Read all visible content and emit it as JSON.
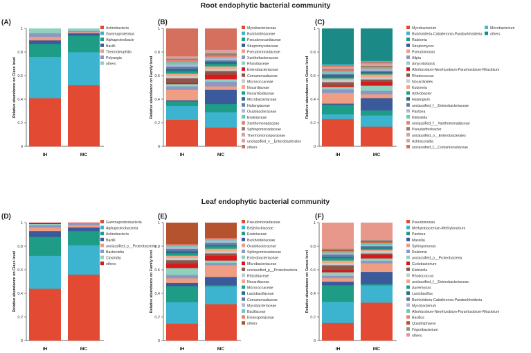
{
  "figure": {
    "section_titles": [
      "Root endophytic bacterial community",
      "Leaf endophytic bacterial community"
    ]
  },
  "chart_data": [
    {
      "panel": "(A)",
      "type": "bar",
      "stacked": true,
      "ylabel": "Relative abundance on Class level",
      "ylim": [
        0,
        1
      ],
      "yticks": [
        "0",
        "0.2",
        "0.4",
        "0.6",
        "0.8",
        "1"
      ],
      "categories": [
        "IH",
        "MC"
      ],
      "series": [
        {
          "name": "Actinobacteria",
          "color": "#E24A33",
          "values": [
            0.41,
            0.52
          ]
        },
        {
          "name": "Gammaproteobac",
          "color": "#3CB4CF",
          "values": [
            0.35,
            0.28
          ]
        },
        {
          "name": "Alphaproteobacte",
          "color": "#1E9C86",
          "values": [
            0.11,
            0.14
          ]
        },
        {
          "name": "Bacilli",
          "color": "#3A5A9B",
          "values": [
            0.03,
            0.02
          ]
        },
        {
          "name": "Thermoleophilia",
          "color": "#EF9D83",
          "values": [
            0.03,
            0.01
          ]
        },
        {
          "name": "Polyangia",
          "color": "#8C97C3",
          "values": [
            0.03,
            0.01
          ]
        },
        {
          "name": "others",
          "color": "#8FD1BF",
          "values": [
            0.04,
            0.02
          ]
        }
      ]
    },
    {
      "panel": "(B)",
      "type": "bar",
      "stacked": true,
      "ylabel": "Relative abundance on Family level",
      "ylim": [
        0,
        1
      ],
      "yticks": [
        "0",
        "0.2",
        "0.4",
        "0.6",
        "0.8",
        "1"
      ],
      "categories": [
        "IH",
        "MC"
      ],
      "series": [
        {
          "name": "Mycobacteriaceae",
          "color": "#E24A33",
          "values": [
            0.23,
            0.16
          ]
        },
        {
          "name": "Burkholderiaceae",
          "color": "#3CB4CF",
          "values": [
            0.12,
            0.13
          ]
        },
        {
          "name": "Pseudonocardiaceae",
          "color": "#1E9C86",
          "values": [
            0.04,
            0.07
          ]
        },
        {
          "name": "Streptomycetaceae",
          "color": "#3A5A9B",
          "values": [
            0.01,
            0.12
          ]
        },
        {
          "name": "Pseudomonadaceae",
          "color": "#EF9D83",
          "values": [
            0.09,
            0.03
          ]
        },
        {
          "name": "Xanthobacteraceae",
          "color": "#8C97C3",
          "values": [
            0.03,
            0.04
          ]
        },
        {
          "name": "Rhizobiaceae",
          "color": "#8FD1BF",
          "values": [
            0.02,
            0.02
          ]
        },
        {
          "name": "Enterobacteriaceae",
          "color": "#D7191C",
          "values": [
            0.01,
            0.04
          ]
        },
        {
          "name": "Comamonadaceae",
          "color": "#8C564B",
          "values": [
            0.04,
            0.03
          ]
        },
        {
          "name": "Micrococcaceae",
          "color": "#C9C9C9",
          "values": [
            0.02,
            0.02
          ]
        },
        {
          "name": "Nocardiaceae",
          "color": "#F4A582",
          "values": [
            0.02,
            0.02
          ]
        },
        {
          "name": "Nocardioidaceae",
          "color": "#17A589",
          "values": [
            0.02,
            0.02
          ]
        },
        {
          "name": "Microbacteriaceae",
          "color": "#2E6B8A",
          "values": [
            0.02,
            0.02
          ]
        },
        {
          "name": "Haliangiaceae",
          "color": "#5E7FA8",
          "values": [
            0.02,
            0.01
          ]
        },
        {
          "name": "Oxalobacteraceae",
          "color": "#B0B7D6",
          "values": [
            0.02,
            0.02
          ]
        },
        {
          "name": "Erwiniaceae",
          "color": "#6FC7B8",
          "values": [
            0.02,
            0.01
          ]
        },
        {
          "name": "Xanthomonadaceae",
          "color": "#E8816F",
          "values": [
            0.02,
            0.01
          ]
        },
        {
          "name": "Sphingomonadaceae",
          "color": "#9B7D6B",
          "values": [
            0.01,
            0.02
          ]
        },
        {
          "name": "Thermomonosporaceae",
          "color": "#C9A9A0",
          "values": [
            0.01,
            0.01
          ]
        },
        {
          "name": "unclassified_o__Enterobacterales",
          "color": "#DDA0A0",
          "values": [
            0.01,
            0.02
          ]
        },
        {
          "name": "others",
          "color": "#D6705E",
          "values": [
            0.24,
            0.18
          ]
        }
      ]
    },
    {
      "panel": "(C)",
      "type": "bar",
      "stacked": true,
      "ylabel": "Relative abundance on Genus level",
      "ylim": [
        0,
        1
      ],
      "yticks": [
        "0",
        "0.2",
        "0.4",
        "0.6",
        "0.8",
        "1"
      ],
      "categories": [
        "IH",
        "MC"
      ],
      "series": [
        {
          "name": "Mycobacterium",
          "color": "#E24A33",
          "values": [
            0.23,
            0.16
          ]
        },
        {
          "name": "Burkholderia-Caballeronia-Paraburkholderia",
          "color": "#3CB4CF",
          "values": [
            0.04,
            0.09
          ]
        },
        {
          "name": "Ralstonia",
          "color": "#1E9C86",
          "values": [
            0.08,
            0.04
          ]
        },
        {
          "name": "Streptomyces",
          "color": "#3A5A9B",
          "values": [
            0.01,
            0.1
          ]
        },
        {
          "name": "Pseudomonas",
          "color": "#EF9D83",
          "values": [
            0.09,
            0.03
          ]
        },
        {
          "name": "Afipia",
          "color": "#8C97C3",
          "values": [
            0.03,
            0.03
          ]
        },
        {
          "name": "Amycolatopsis",
          "color": "#8FD1BF",
          "values": [
            0.02,
            0.04
          ]
        },
        {
          "name": "Allorhizobium-Neorhizobium-Pararhizobium-Rhizobium",
          "color": "#D7191C",
          "values": [
            0.01,
            0.03
          ]
        },
        {
          "name": "Rhodococcus",
          "color": "#8C564B",
          "values": [
            0.03,
            0.02
          ]
        },
        {
          "name": "Nocardioides",
          "color": "#C9C9C9",
          "values": [
            0.02,
            0.02
          ]
        },
        {
          "name": "Kutzneria",
          "color": "#F4A582",
          "values": [
            0.01,
            0.02
          ]
        },
        {
          "name": "Arthrobacter",
          "color": "#17A589",
          "values": [
            0.01,
            0.01
          ]
        },
        {
          "name": "Haliangium",
          "color": "#2E6B8A",
          "values": [
            0.02,
            0.01
          ]
        },
        {
          "name": "unclassified_f__Enterobacteriaceae",
          "color": "#5E7FA8",
          "values": [
            0.01,
            0.01
          ]
        },
        {
          "name": "Pantoea",
          "color": "#B0B7D6",
          "values": [
            0.01,
            0.01
          ]
        },
        {
          "name": "Klebsiella",
          "color": "#6FC7B8",
          "values": [
            0.01,
            0.01
          ]
        },
        {
          "name": "unclassified_f__Xanthomonadaceae",
          "color": "#E8816F",
          "values": [
            0.01,
            0.01
          ]
        },
        {
          "name": "Pseudarthrobacter",
          "color": "#9B7D6B",
          "values": [
            0.01,
            0.01
          ]
        },
        {
          "name": "unclassified_o__Enterobacterales",
          "color": "#C9A9A0",
          "values": [
            0.01,
            0.01
          ]
        },
        {
          "name": "Actinocorallia",
          "color": "#DDA0A0",
          "values": [
            0.01,
            0.01
          ]
        },
        {
          "name": "unclassified_f__Comamonadaceae",
          "color": "#D6705E",
          "values": [
            0.01,
            0.01
          ]
        },
        {
          "name": "Microbacterium",
          "color": "#48B9C9",
          "values": [
            0.01,
            0.01
          ]
        },
        {
          "name": "others",
          "color": "#1B8A86",
          "values": [
            0.3,
            0.26
          ]
        }
      ]
    },
    {
      "panel": "(D)",
      "type": "bar",
      "stacked": true,
      "ylabel": "Relative abundance on Class level",
      "ylim": [
        0,
        1
      ],
      "yticks": [
        "0",
        "0.2",
        "0.4",
        "0.6",
        "0.8",
        "1"
      ],
      "categories": [
        "IH",
        "MC"
      ],
      "series": [
        {
          "name": "Gammaproteobacteria",
          "color": "#E24A33",
          "values": [
            0.44,
            0.56
          ]
        },
        {
          "name": "Alphaproteobacteria",
          "color": "#3CB4CF",
          "values": [
            0.28,
            0.25
          ]
        },
        {
          "name": "Actinobacteria",
          "color": "#1E9C86",
          "values": [
            0.16,
            0.12
          ]
        },
        {
          "name": "Bacilli",
          "color": "#3A5A9B",
          "values": [
            0.05,
            0.03
          ]
        },
        {
          "name": "unclassified_p__Proteobacteria",
          "color": "#EF9D83",
          "values": [
            0.03,
            0.02
          ]
        },
        {
          "name": "Bacteroidia",
          "color": "#8C97C3",
          "values": [
            0.02,
            0.01
          ]
        },
        {
          "name": "Clostridia",
          "color": "#8FD1BF",
          "values": [
            0.01,
            0.005
          ]
        },
        {
          "name": "others",
          "color": "#D7191C",
          "values": [
            0.01,
            0.005
          ]
        }
      ]
    },
    {
      "panel": "(E)",
      "type": "bar",
      "stacked": true,
      "ylabel": "Relative abundance on Family level",
      "ylim": [
        0,
        1
      ],
      "yticks": [
        "0",
        "0.2",
        "0.4",
        "0.6",
        "0.8",
        "1"
      ],
      "categories": [
        "IH",
        "MC"
      ],
      "series": [
        {
          "name": "Pseudomonadaceae",
          "color": "#E24A33",
          "values": [
            0.15,
            0.31
          ]
        },
        {
          "name": "Beijerinckiaceae",
          "color": "#3CB4CF",
          "values": [
            0.19,
            0.15
          ]
        },
        {
          "name": "Erwiniaceae",
          "color": "#1E9C86",
          "values": [
            0.14,
            0.01
          ]
        },
        {
          "name": "Burkholderiaceae",
          "color": "#3A5A9B",
          "values": [
            0.03,
            0.07
          ]
        },
        {
          "name": "Oxalobacteraceae",
          "color": "#EF9D83",
          "values": [
            0.04,
            0.1
          ]
        },
        {
          "name": "Sphingomonadaceae",
          "color": "#8C97C3",
          "values": [
            0.03,
            0.02
          ]
        },
        {
          "name": "Enterobacteriaceae",
          "color": "#8FD1BF",
          "values": [
            0.06,
            0.02
          ]
        },
        {
          "name": "Microbacteriaceae",
          "color": "#D7191C",
          "values": [
            0.04,
            0.04
          ]
        },
        {
          "name": "unclassified_p__Proteobacteria",
          "color": "#8C564B",
          "values": [
            0.03,
            0.02
          ]
        },
        {
          "name": "Rhizobiaceae",
          "color": "#C9C9C9",
          "values": [
            0.02,
            0.02
          ]
        },
        {
          "name": "Nocardiaceae",
          "color": "#F4A582",
          "values": [
            0.02,
            0.02
          ]
        },
        {
          "name": "Micrococcaceae",
          "color": "#17A589",
          "values": [
            0.02,
            0.02
          ]
        },
        {
          "name": "Lactobacillaceae",
          "color": "#2E6B8A",
          "values": [
            0.02,
            0.01
          ]
        },
        {
          "name": "Comamonadaceae",
          "color": "#5E7FA8",
          "values": [
            0.02,
            0.02
          ]
        },
        {
          "name": "Mycobacteriaceae",
          "color": "#B0B7D6",
          "values": [
            0.02,
            0.02
          ]
        },
        {
          "name": "Bacillaceae",
          "color": "#6FC7B8",
          "values": [
            0.01,
            0.01
          ]
        },
        {
          "name": "Kineosporiaceae",
          "color": "#E8816F",
          "values": [
            0.01,
            0.01
          ]
        },
        {
          "name": "others",
          "color": "#B5532F",
          "values": [
            0.19,
            0.13
          ]
        }
      ]
    },
    {
      "panel": "(F)",
      "type": "bar",
      "stacked": true,
      "ylabel": "Relative abundance on Genus level",
      "ylim": [
        0,
        1
      ],
      "yticks": [
        "0",
        "0.2",
        "0.4",
        "0.6",
        "0.8",
        "1"
      ],
      "categories": [
        "IH",
        "MC"
      ],
      "series": [
        {
          "name": "Pseudomonas",
          "color": "#E24A33",
          "values": [
            0.15,
            0.31
          ]
        },
        {
          "name": "Methylobacterium-Methylorubrum",
          "color": "#3CB4CF",
          "values": [
            0.18,
            0.14
          ]
        },
        {
          "name": "Pantoea",
          "color": "#1E9C86",
          "values": [
            0.14,
            0.01
          ]
        },
        {
          "name": "Massilia",
          "color": "#3A5A9B",
          "values": [
            0.03,
            0.1
          ]
        },
        {
          "name": "Sphingomonas",
          "color": "#EF9D83",
          "values": [
            0.03,
            0.07
          ]
        },
        {
          "name": "Ralstonia",
          "color": "#8C97C3",
          "values": [
            0.02,
            0.02
          ]
        },
        {
          "name": "unclassified_p__Proteobacteria",
          "color": "#8FD1BF",
          "values": [
            0.03,
            0.02
          ]
        },
        {
          "name": "Curtobacterium",
          "color": "#D7191C",
          "values": [
            0.02,
            0.03
          ]
        },
        {
          "name": "Klebsiella",
          "color": "#8C564B",
          "values": [
            0.04,
            0.01
          ]
        },
        {
          "name": "Rhodococcus",
          "color": "#C9C9C9",
          "values": [
            0.02,
            0.02
          ]
        },
        {
          "name": "unclassified_f__Enterobacteriaceae",
          "color": "#F4A582",
          "values": [
            0.02,
            0.01
          ]
        },
        {
          "name": "Aureimonas",
          "color": "#17A589",
          "values": [
            0.02,
            0.01
          ]
        },
        {
          "name": "Lactobacillus",
          "color": "#2E6B8A",
          "values": [
            0.01,
            0.01
          ]
        },
        {
          "name": "Burkholderia-Caballeronia-Paraburkholderia",
          "color": "#5E7FA8",
          "values": [
            0.02,
            0.01
          ]
        },
        {
          "name": "Mycobacterium",
          "color": "#B0B7D6",
          "values": [
            0.01,
            0.01
          ]
        },
        {
          "name": "Allorhizobium-Neorhizobium-Pararhizobium-Rhizobium",
          "color": "#6FC7B8",
          "values": [
            0.01,
            0.01
          ]
        },
        {
          "name": "Bacillus",
          "color": "#E8816F",
          "values": [
            0.01,
            0.01
          ]
        },
        {
          "name": "Quadrisphaera",
          "color": "#B5532F",
          "values": [
            0.01,
            0.01
          ]
        },
        {
          "name": "Frigoribacterium",
          "color": "#9B8F8A",
          "values": [
            0.01,
            0.01
          ]
        },
        {
          "name": "others",
          "color": "#E8988A",
          "values": [
            0.22,
            0.14
          ]
        }
      ]
    }
  ]
}
